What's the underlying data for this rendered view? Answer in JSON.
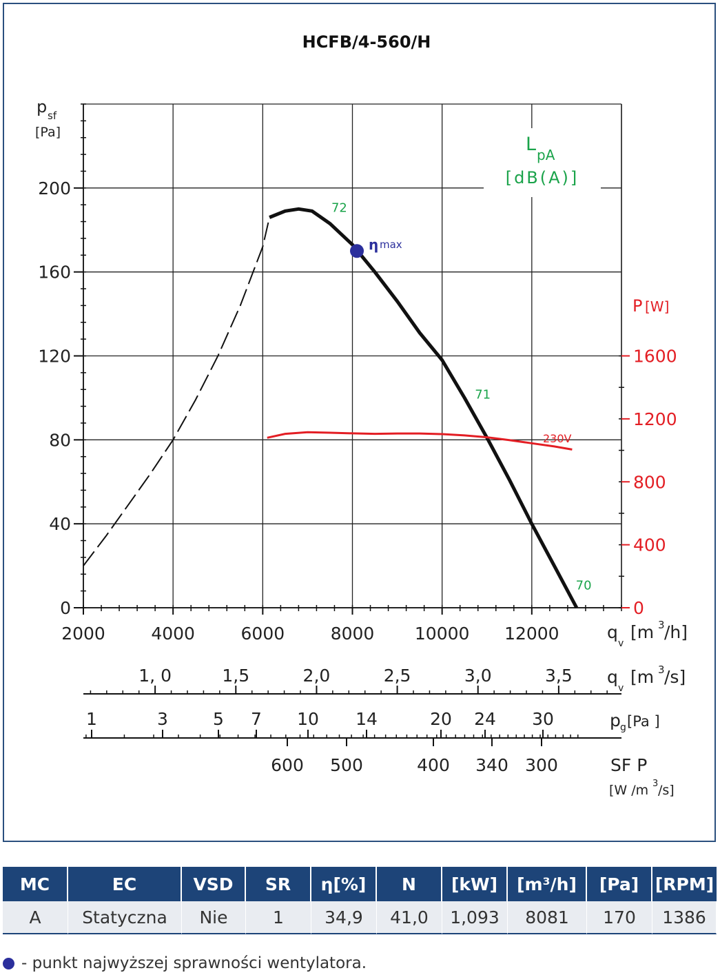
{
  "chart_data": {
    "type": "line",
    "title": "HCFB/4-560/H",
    "y_axis": {
      "label_main": "p",
      "label_sub": "sf",
      "unit": "[Pa]",
      "range": [
        0,
        200
      ],
      "ticks": [
        0,
        40,
        80,
        120,
        160,
        200
      ],
      "tick_labels": [
        "0",
        "40",
        "80",
        "120",
        "160",
        "200"
      ]
    },
    "y2_axis": {
      "label": "P",
      "unit": "[W]",
      "range": [
        0,
        1600
      ],
      "ticks": [
        0,
        400,
        800,
        1200,
        1600
      ],
      "tick_labels": [
        "0",
        "400",
        "800",
        "1200",
        "1600"
      ]
    },
    "x_axis": {
      "label": "q",
      "label_sub": "v",
      "unit_text": "[m",
      "unit_sup": "3",
      "unit_end": "/h]",
      "range": [
        2000,
        14000
      ],
      "ticks": [
        2000,
        4000,
        6000,
        8000,
        10000,
        12000
      ],
      "tick_labels": [
        "2000",
        "4000",
        "6000",
        "8000",
        "10000",
        "12000"
      ]
    },
    "x_axis_m3s": {
      "label": "q",
      "label_sub": "v",
      "unit_text": "[m",
      "unit_sup": "3",
      "unit_end": "/s]",
      "ticks": [
        1.0,
        1.5,
        2.0,
        2.5,
        3.0,
        3.5
      ],
      "tick_labels": [
        "1, 0",
        "1,5",
        "2,0",
        "2,5",
        "3,0",
        "3,5"
      ]
    },
    "pg_scale": {
      "label": "p",
      "label_sub": "g",
      "unit": "[Pa ]",
      "ticks": [
        1,
        3,
        5,
        7,
        10,
        14,
        20,
        24,
        30
      ],
      "tick_labels": [
        "1",
        "3",
        "5",
        "7",
        "10",
        "14",
        "20",
        "24",
        "30"
      ]
    },
    "sfp_scale": {
      "label": "SF P",
      "unit_text": "[W /m",
      "unit_sup": "3",
      "unit_end": "/s]",
      "ticks": [
        600,
        500,
        400,
        340,
        300
      ],
      "tick_labels": [
        "600",
        "500",
        "400",
        "340",
        "300"
      ]
    },
    "series": [
      {
        "role": "pressure-unstable",
        "style": "dashed",
        "x": [
          2000,
          2500,
          3000,
          3500,
          4000,
          4500,
          5000,
          5500,
          6000,
          6150
        ],
        "y": [
          20,
          34,
          49,
          64,
          80,
          99,
          120,
          144,
          172,
          186
        ]
      },
      {
        "role": "pressure-stable",
        "style": "solid",
        "x": [
          6150,
          6500,
          6800,
          7100,
          7500,
          8000,
          8500,
          9000,
          9500,
          10000,
          10500,
          11000,
          11500,
          12000,
          12500,
          13000
        ],
        "y": [
          186,
          189,
          190,
          189,
          183,
          173,
          160,
          146,
          131,
          118,
          100,
          81,
          61,
          40,
          20,
          0
        ]
      },
      {
        "role": "power",
        "style": "solid",
        "color": "#e31e24",
        "label": "230V",
        "x": [
          6100,
          6500,
          7000,
          7500,
          8000,
          8500,
          9000,
          9500,
          10000,
          10500,
          11000,
          11500,
          12000,
          12500,
          12900
        ],
        "y": [
          1080,
          1105,
          1115,
          1112,
          1108,
          1105,
          1107,
          1107,
          1103,
          1095,
          1083,
          1065,
          1045,
          1025,
          1005
        ]
      }
    ],
    "eta_max": {
      "label": "η",
      "label_sub": "max",
      "x": 8100,
      "y": 170,
      "color": "#2b2f9c"
    },
    "noise": {
      "label_main": "L",
      "label_sub": "pA",
      "unit": "[dB(A)]",
      "color": "#1aa34a",
      "points": [
        {
          "value": "72",
          "x": 7500,
          "y": 188
        },
        {
          "value": "71",
          "x": 10700,
          "y": 99
        },
        {
          "value": "70",
          "x": 12950,
          "y": 8
        }
      ]
    },
    "grid": true,
    "colors": {
      "pressure": "#111111",
      "power": "#e31e24",
      "noise": "#1aa34a",
      "eta": "#2b2f9c",
      "frame": "#2a4f7e"
    }
  },
  "table": {
    "headers": [
      "MC",
      "EC",
      "VSD",
      "SR",
      "η[%]",
      "N",
      "[kW]",
      "[m³/h]",
      "[Pa]",
      "[RPM]"
    ],
    "row": [
      "A",
      "Statyczna",
      "Nie",
      "1",
      "34,9",
      "41,0",
      "1,093",
      "8081",
      "170",
      "1386"
    ]
  },
  "legend_note": "- punkt najwyższej sprawności wentylatora.",
  "colors": {
    "header_bg": "#1d4478",
    "row_bg": "#e9ecf1",
    "dot": "#2b2f9c"
  }
}
